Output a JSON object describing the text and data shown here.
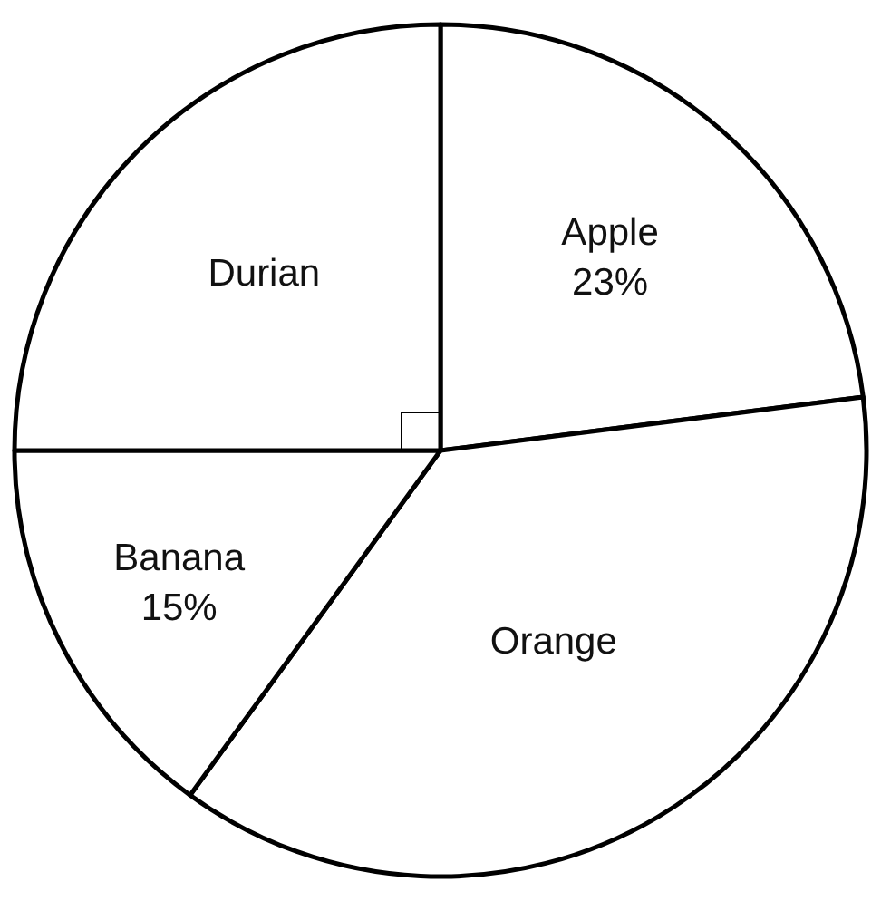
{
  "chart_data": {
    "type": "pie",
    "categories": [
      "Apple",
      "Orange",
      "Banana",
      "Durian"
    ],
    "values": [
      23,
      37,
      15,
      25
    ],
    "colors": [
      "#ffffff",
      "#ffffff",
      "#ffffff",
      "#ffffff"
    ],
    "value_labels": [
      "23%",
      null,
      "15%",
      null
    ],
    "legend": false
  }
}
